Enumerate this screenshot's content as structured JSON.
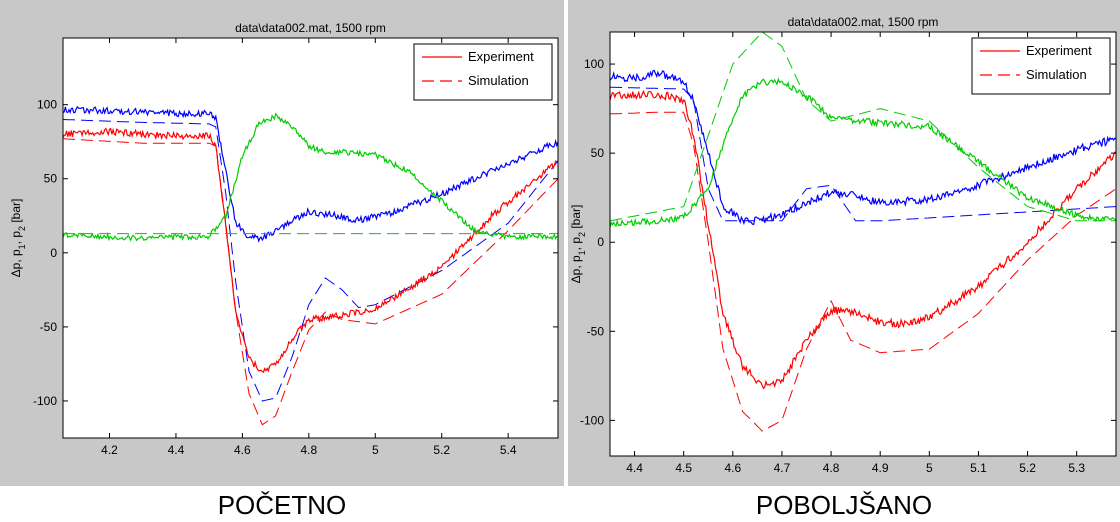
{
  "colors": {
    "p1": "#0000ff",
    "p2": "#00cc00",
    "dp": "#ff0000",
    "panel_bg": "#c8c8c8",
    "plot_bg": "#ffffff"
  },
  "chart_data": [
    {
      "type": "line",
      "title": "data\\data002.mat, 1500 rpm",
      "caption": "POČETNO",
      "ylabel_parts": [
        "Δp, p",
        "1",
        ", p",
        "2",
        " [bar]"
      ],
      "xlim": [
        4.06,
        5.55
      ],
      "ylim": [
        -125,
        145
      ],
      "xticks": [
        4.2,
        4.4,
        4.6,
        4.8,
        5,
        5.2,
        5.4
      ],
      "xtick_labels": [
        "4.2",
        "4.4",
        "4.6",
        "4.8",
        "5",
        "5.2",
        "5.4"
      ],
      "yticks": [
        100,
        50,
        0,
        -50,
        -100
      ],
      "ytick_labels": [
        "100",
        "50",
        "0",
        "-50",
        "-100"
      ],
      "legend": {
        "position": "top-right",
        "entries": [
          {
            "label": "Experiment",
            "style": "solid"
          },
          {
            "label": "Simulation",
            "style": "dashed"
          }
        ]
      },
      "series": [
        {
          "color_key": "p1",
          "style": "solid",
          "noise": 2.2,
          "x": [
            4.06,
            4.2,
            4.3,
            4.4,
            4.5,
            4.52,
            4.55,
            4.58,
            4.62,
            4.66,
            4.7,
            4.75,
            4.8,
            4.88,
            4.95,
            5.05,
            5.2,
            5.35,
            5.55
          ],
          "y": [
            97,
            96,
            95,
            94,
            94,
            90,
            55,
            20,
            10,
            10,
            15,
            22,
            28,
            25,
            22,
            27,
            40,
            55,
            75
          ]
        },
        {
          "color_key": "p1",
          "style": "dashed",
          "noise": 0,
          "x": [
            4.06,
            4.3,
            4.5,
            4.52,
            4.55,
            4.58,
            4.62,
            4.66,
            4.7,
            4.75,
            4.8,
            4.85,
            4.9,
            4.95,
            5.0,
            5.2,
            5.4,
            5.55
          ],
          "y": [
            90,
            88,
            87,
            85,
            40,
            -20,
            -80,
            -100,
            -98,
            -70,
            -35,
            -17,
            -25,
            -37,
            -35,
            -12,
            20,
            62
          ]
        },
        {
          "color_key": "dp",
          "style": "solid",
          "noise": 2.2,
          "x": [
            4.06,
            4.2,
            4.3,
            4.4,
            4.5,
            4.52,
            4.55,
            4.58,
            4.62,
            4.66,
            4.7,
            4.75,
            4.8,
            4.9,
            5.0,
            5.2,
            5.35,
            5.55
          ],
          "y": [
            80,
            82,
            80,
            79,
            79,
            72,
            20,
            -40,
            -72,
            -80,
            -75,
            -58,
            -45,
            -42,
            -38,
            -10,
            25,
            62
          ]
        },
        {
          "color_key": "dp",
          "style": "dashed",
          "noise": 0,
          "x": [
            4.06,
            4.3,
            4.5,
            4.52,
            4.55,
            4.58,
            4.62,
            4.66,
            4.7,
            4.75,
            4.8,
            4.85,
            4.9,
            5.0,
            5.2,
            5.4,
            5.55
          ],
          "y": [
            77,
            74,
            74,
            72,
            20,
            -40,
            -95,
            -116,
            -110,
            -80,
            -52,
            -40,
            -45,
            -48,
            -28,
            15,
            50
          ]
        },
        {
          "color_key": "p2",
          "style": "solid",
          "noise": 1.8,
          "x": [
            4.06,
            4.3,
            4.5,
            4.55,
            4.6,
            4.65,
            4.7,
            4.75,
            4.8,
            4.85,
            4.9,
            5.0,
            5.1,
            5.2,
            5.3,
            5.4,
            5.55
          ],
          "y": [
            12,
            10,
            11,
            25,
            65,
            88,
            92,
            85,
            72,
            68,
            68,
            66,
            55,
            35,
            15,
            11,
            11
          ]
        },
        {
          "color_key": "p2",
          "style": "dashed",
          "noise": 0,
          "x": [
            4.06,
            5.55
          ],
          "y": [
            13,
            13
          ]
        }
      ]
    },
    {
      "type": "line",
      "title": "data\\data002.mat, 1500 rpm",
      "caption": "POBOLJŠANO",
      "ylabel_parts": [
        "Δp, p",
        "1",
        ", p",
        "2",
        " [bar]"
      ],
      "xlim": [
        4.35,
        5.38
      ],
      "ylim": [
        -120,
        118
      ],
      "xticks": [
        4.4,
        4.5,
        4.6,
        4.7,
        4.8,
        4.9,
        5,
        5.1,
        5.2,
        5.3
      ],
      "xtick_labels": [
        "4.4",
        "4.5",
        "4.6",
        "4.7",
        "4.8",
        "4.9",
        "5",
        "5.1",
        "5.2",
        "5.3"
      ],
      "yticks": [
        100,
        50,
        0,
        -50,
        -100
      ],
      "ytick_labels": [
        "100",
        "50",
        "0",
        "-50",
        "-100"
      ],
      "legend": {
        "position": "top-right",
        "entries": [
          {
            "label": "Experiment",
            "style": "solid"
          },
          {
            "label": "Simulation",
            "style": "dashed"
          }
        ]
      },
      "series": [
        {
          "color_key": "p1",
          "style": "solid",
          "noise": 2.2,
          "x": [
            4.35,
            4.4,
            4.45,
            4.5,
            4.52,
            4.55,
            4.58,
            4.62,
            4.66,
            4.7,
            4.75,
            4.8,
            4.85,
            4.9,
            5.0,
            5.1,
            5.2,
            5.3,
            5.38
          ],
          "y": [
            93,
            92,
            95,
            90,
            80,
            50,
            20,
            12,
            12,
            16,
            22,
            28,
            26,
            22,
            24,
            32,
            42,
            52,
            58
          ]
        },
        {
          "color_key": "p1",
          "style": "dashed",
          "noise": 0,
          "x": [
            4.35,
            4.5,
            4.52,
            4.55,
            4.58,
            4.7,
            4.75,
            4.8,
            4.85,
            4.9,
            5.38
          ],
          "y": [
            87,
            86,
            80,
            30,
            12,
            12,
            30,
            32,
            12,
            12,
            20
          ]
        },
        {
          "color_key": "dp",
          "style": "solid",
          "noise": 2.2,
          "x": [
            4.35,
            4.45,
            4.5,
            4.52,
            4.55,
            4.58,
            4.62,
            4.66,
            4.7,
            4.75,
            4.8,
            4.85,
            4.9,
            4.95,
            5.0,
            5.1,
            5.2,
            5.3,
            5.38
          ],
          "y": [
            82,
            83,
            80,
            60,
            10,
            -40,
            -70,
            -80,
            -78,
            -55,
            -38,
            -40,
            -45,
            -46,
            -42,
            -25,
            0,
            30,
            50
          ]
        },
        {
          "color_key": "dp",
          "style": "dashed",
          "noise": 0,
          "x": [
            4.35,
            4.45,
            4.5,
            4.52,
            4.55,
            4.58,
            4.62,
            4.66,
            4.7,
            4.75,
            4.8,
            4.84,
            4.9,
            5.0,
            5.1,
            5.2,
            5.3,
            5.38
          ],
          "y": [
            72,
            73,
            73,
            55,
            0,
            -60,
            -95,
            -106,
            -100,
            -60,
            -33,
            -55,
            -62,
            -60,
            -40,
            -10,
            15,
            30
          ]
        },
        {
          "color_key": "p2",
          "style": "solid",
          "noise": 1.8,
          "x": [
            4.35,
            4.45,
            4.5,
            4.55,
            4.58,
            4.62,
            4.66,
            4.7,
            4.75,
            4.8,
            4.9,
            5.0,
            5.1,
            5.2,
            5.3,
            5.38
          ],
          "y": [
            10,
            12,
            14,
            30,
            55,
            82,
            90,
            90,
            82,
            70,
            67,
            65,
            45,
            25,
            15,
            12
          ]
        },
        {
          "color_key": "p2",
          "style": "dashed",
          "noise": 0,
          "x": [
            4.35,
            4.5,
            4.55,
            4.6,
            4.66,
            4.7,
            4.75,
            4.8,
            4.9,
            5.0,
            5.1,
            5.2,
            5.3,
            5.38
          ],
          "y": [
            12,
            20,
            60,
            100,
            118,
            110,
            80,
            68,
            75,
            68,
            42,
            20,
            12,
            12
          ]
        }
      ]
    }
  ]
}
